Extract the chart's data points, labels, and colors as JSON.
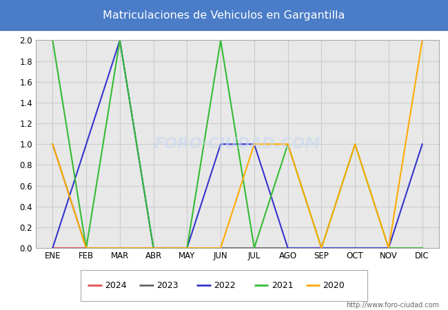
{
  "title": "Matriculaciones de Vehiculos en Gargantilla",
  "title_bg_color": "#4a7cc7",
  "title_text_color": "#ffffff",
  "months": [
    "ENE",
    "FEB",
    "MAR",
    "ABR",
    "MAY",
    "JUN",
    "JUL",
    "AGO",
    "SEP",
    "OCT",
    "NOV",
    "DIC"
  ],
  "series": {
    "2024": {
      "color": "#e05050",
      "data": [
        0,
        0,
        0,
        0,
        0,
        null,
        null,
        null,
        null,
        null,
        null,
        null
      ]
    },
    "2023": {
      "color": "#666666",
      "data": [
        1,
        0,
        0,
        0,
        0,
        0,
        0,
        0,
        0,
        0,
        0,
        0
      ]
    },
    "2022": {
      "color": "#3333cc",
      "data": [
        0,
        1,
        2,
        0,
        0,
        1,
        1,
        0,
        0,
        0,
        0,
        1
      ]
    },
    "2021": {
      "color": "#33bb33",
      "data": [
        2,
        0,
        2,
        0,
        0,
        2,
        0,
        1,
        0,
        1,
        0,
        0
      ]
    },
    "2020": {
      "color": "#ffaa00",
      "data": [
        1,
        0,
        0,
        0,
        0,
        0,
        1,
        1,
        0,
        1,
        0,
        2
      ]
    }
  },
  "ylim": [
    0,
    2.0
  ],
  "yticks": [
    0.0,
    0.2,
    0.4,
    0.6,
    0.8,
    1.0,
    1.2,
    1.4,
    1.6,
    1.8,
    2.0
  ],
  "grid_color": "#cccccc",
  "plot_bg_color": "#e8e8e8",
  "watermark": "FORO·CIUDAD.COM",
  "url": "http://www.foro-ciudad.com",
  "legend_years": [
    "2024",
    "2023",
    "2022",
    "2021",
    "2020"
  ]
}
